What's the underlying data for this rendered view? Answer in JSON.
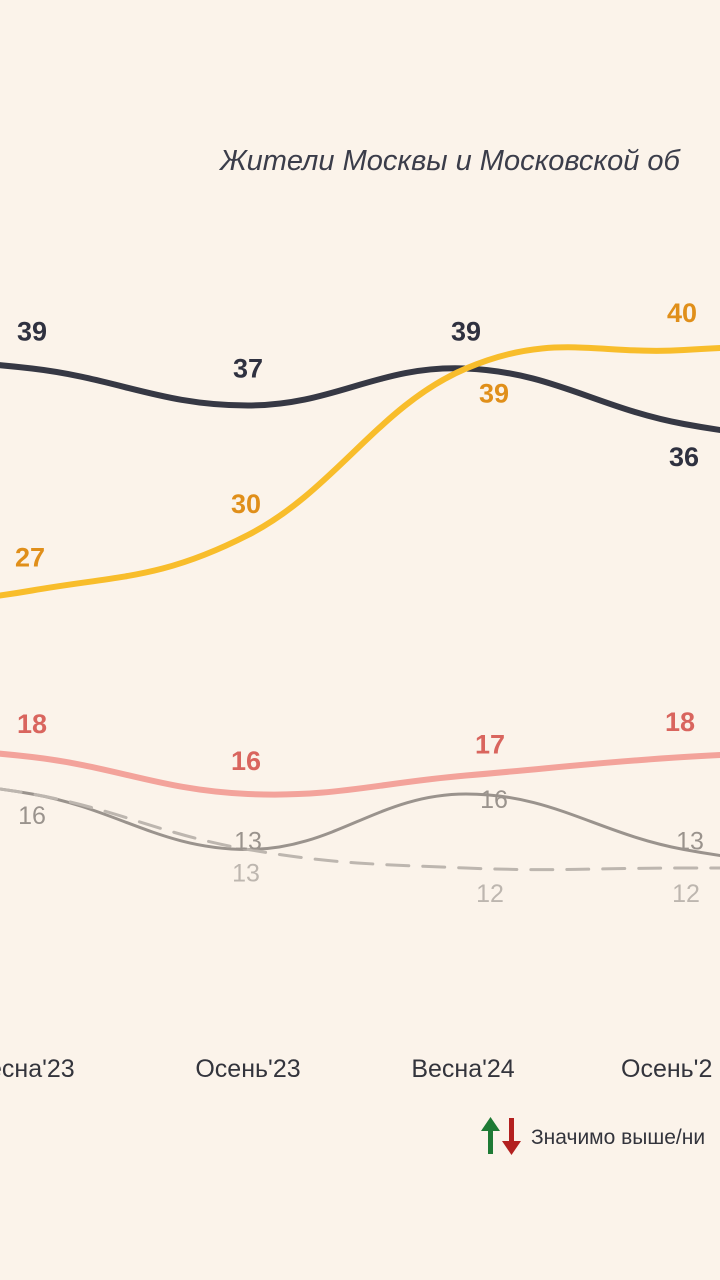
{
  "subtitle": "Жители Москвы и Московской об",
  "legend": {
    "significance_label": "Значимо выше/ни",
    "up_color": "#1e7a35",
    "down_color": "#b3201f",
    "up_icon": "arrow-up-icon",
    "down_icon": "arrow-down-icon"
  },
  "chart_data": {
    "type": "line",
    "categories": [
      "есна'23",
      "Осень'23",
      "Весна'24",
      "Осень'2"
    ],
    "series": [
      {
        "values": [
          39,
          37,
          39,
          36
        ],
        "color": "#363844",
        "style": "solid-thick",
        "label_color": "#2f3140",
        "label_weight": "bold"
      },
      {
        "values": [
          27,
          30,
          39,
          40
        ],
        "color": "#f8bd2b",
        "style": "solid-thick",
        "label_color": "#e08f1a",
        "label_weight": "bold"
      },
      {
        "values": [
          18,
          16,
          17,
          18
        ],
        "color": "#f3a39b",
        "style": "solid-thick",
        "label_color": "#d9655e",
        "label_weight": "bold"
      },
      {
        "values": [
          16,
          13,
          16,
          13
        ],
        "color": "#9a938d",
        "style": "solid-thin",
        "label_color": "#9a938d",
        "label_weight": "normal"
      },
      {
        "values": [
          16,
          13,
          12,
          12
        ],
        "color": "#bdb6af",
        "style": "dashed",
        "label_color": "#bdb6af",
        "label_weight": "normal",
        "hide_first_label": true
      }
    ]
  }
}
